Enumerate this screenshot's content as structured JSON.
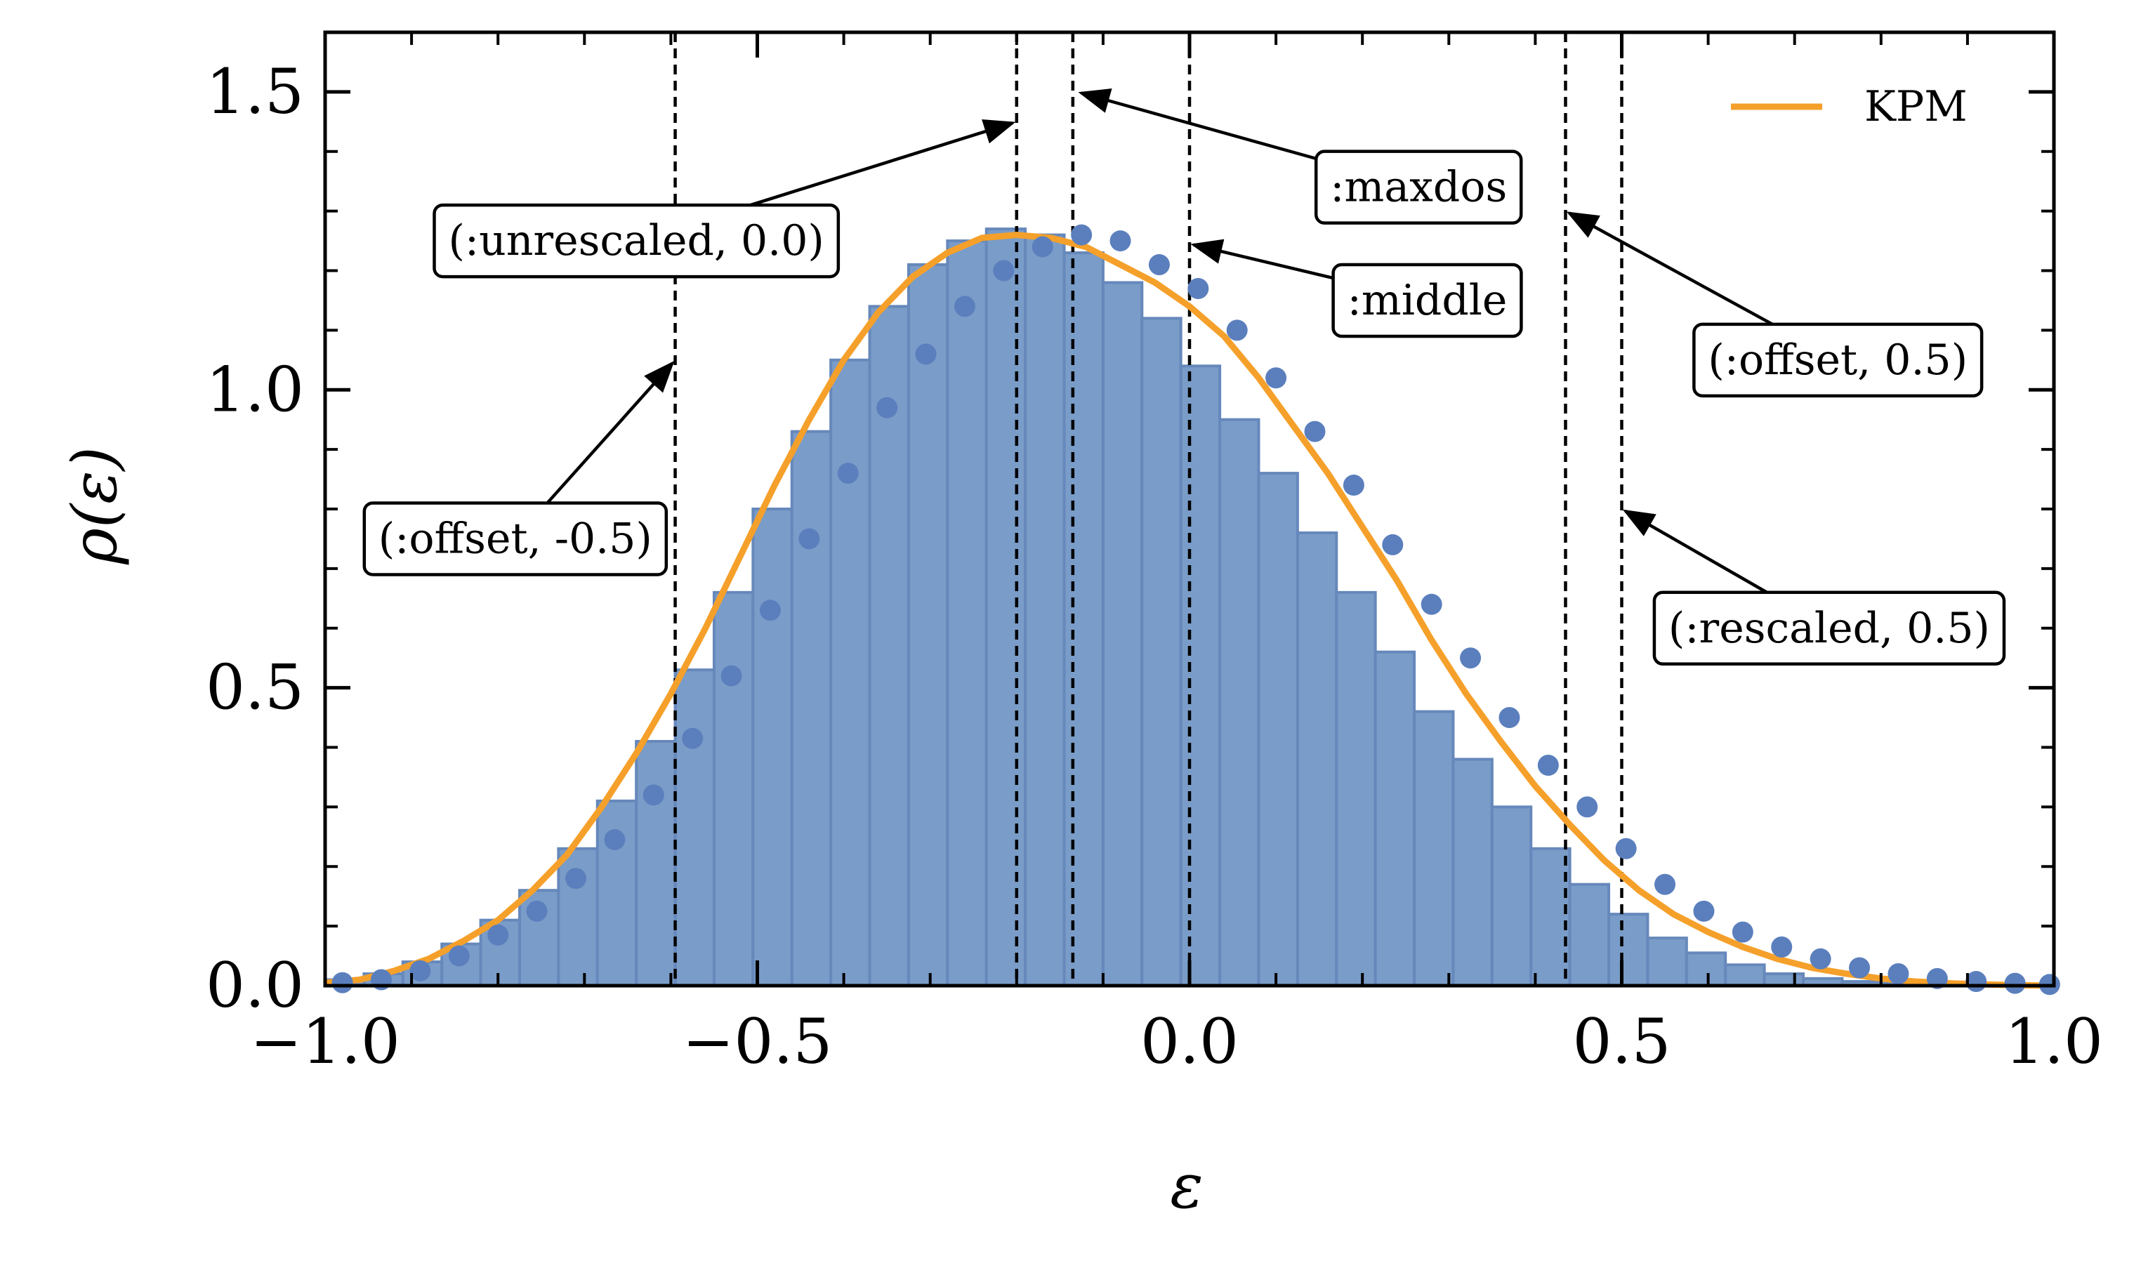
{
  "chart_data": {
    "type": "bar",
    "xlabel": "ε",
    "ylabel": "ρ(ε)",
    "xlim": [
      -1.0,
      1.0
    ],
    "ylim": [
      0.0,
      1.6
    ],
    "x_ticks": [
      -1.0,
      -0.5,
      0.0,
      0.5,
      1.0
    ],
    "x_tick_labels": [
      "−1.0",
      "−0.5",
      "0.0",
      "0.5",
      "1.0"
    ],
    "y_ticks": [
      0.0,
      0.5,
      1.0,
      1.5
    ],
    "y_tick_labels": [
      "0.0",
      "0.5",
      "1.0",
      "1.5"
    ],
    "grid": false,
    "legend": {
      "position": "top-right",
      "entries": [
        {
          "name": "KPM",
          "color": "#f5a02a",
          "style": "line"
        }
      ]
    },
    "colors": {
      "histogram": "#7a9cc8",
      "histogram_edge": "#6688bb",
      "points": "#5b7fbd",
      "kpm": "#f5a02a"
    },
    "histogram": {
      "bin_centers": [
        -0.9775,
        -0.9325,
        -0.8875,
        -0.8425,
        -0.7975,
        -0.7525,
        -0.7075,
        -0.6625,
        -0.6175,
        -0.5725,
        -0.5275,
        -0.4825,
        -0.4375,
        -0.3925,
        -0.3475,
        -0.3025,
        -0.2575,
        -0.2125,
        -0.1675,
        -0.1225,
        -0.0775,
        -0.0325,
        0.0125,
        0.0575,
        0.1025,
        0.1475,
        0.1925,
        0.2375,
        0.2825,
        0.3275,
        0.3725,
        0.4175,
        0.4625,
        0.5075,
        0.5525,
        0.5975,
        0.6425,
        0.6875,
        0.7325,
        0.7775,
        0.8225,
        0.8675,
        0.9125,
        0.9575
      ],
      "values": [
        0.01,
        0.02,
        0.04,
        0.07,
        0.11,
        0.16,
        0.23,
        0.31,
        0.41,
        0.53,
        0.66,
        0.8,
        0.93,
        1.05,
        1.14,
        1.21,
        1.25,
        1.27,
        1.26,
        1.23,
        1.18,
        1.12,
        1.04,
        0.95,
        0.86,
        0.76,
        0.66,
        0.56,
        0.46,
        0.38,
        0.3,
        0.23,
        0.17,
        0.12,
        0.08,
        0.055,
        0.035,
        0.02,
        0.012,
        0.007,
        0.004,
        0.002,
        0.001,
        0.0
      ]
    },
    "series": [
      {
        "name": "KPM",
        "type": "line",
        "x": [
          -1.0,
          -0.96,
          -0.92,
          -0.88,
          -0.84,
          -0.8,
          -0.76,
          -0.72,
          -0.68,
          -0.64,
          -0.6,
          -0.56,
          -0.52,
          -0.48,
          -0.44,
          -0.4,
          -0.36,
          -0.32,
          -0.28,
          -0.24,
          -0.2,
          -0.16,
          -0.12,
          -0.08,
          -0.04,
          0.0,
          0.04,
          0.08,
          0.12,
          0.16,
          0.2,
          0.24,
          0.28,
          0.32,
          0.36,
          0.4,
          0.44,
          0.48,
          0.52,
          0.56,
          0.6,
          0.64,
          0.68,
          0.72,
          0.76,
          0.8,
          0.84,
          0.88,
          0.92,
          0.96,
          1.0
        ],
        "y": [
          0.005,
          0.01,
          0.025,
          0.045,
          0.075,
          0.11,
          0.16,
          0.22,
          0.3,
          0.39,
          0.49,
          0.6,
          0.72,
          0.84,
          0.95,
          1.05,
          1.13,
          1.19,
          1.23,
          1.255,
          1.26,
          1.255,
          1.24,
          1.21,
          1.18,
          1.14,
          1.09,
          1.02,
          0.94,
          0.86,
          0.77,
          0.68,
          0.58,
          0.49,
          0.41,
          0.335,
          0.27,
          0.21,
          0.16,
          0.12,
          0.09,
          0.065,
          0.045,
          0.03,
          0.02,
          0.012,
          0.007,
          0.004,
          0.002,
          0.001,
          0.0
        ]
      }
    ],
    "points": {
      "x": [
        -0.98,
        -0.935,
        -0.89,
        -0.845,
        -0.8,
        -0.755,
        -0.71,
        -0.665,
        -0.62,
        -0.575,
        -0.53,
        -0.485,
        -0.44,
        -0.395,
        -0.35,
        -0.305,
        -0.26,
        -0.215,
        -0.17,
        -0.125,
        -0.08,
        -0.035,
        0.01,
        0.055,
        0.1,
        0.145,
        0.19,
        0.235,
        0.28,
        0.325,
        0.37,
        0.415,
        0.46,
        0.505,
        0.55,
        0.595,
        0.64,
        0.685,
        0.73,
        0.775,
        0.82,
        0.865,
        0.91,
        0.955,
        0.995
      ],
      "y": [
        0.005,
        0.01,
        0.025,
        0.05,
        0.085,
        0.125,
        0.18,
        0.245,
        0.32,
        0.415,
        0.52,
        0.63,
        0.75,
        0.86,
        0.97,
        1.06,
        1.14,
        1.2,
        1.24,
        1.26,
        1.25,
        1.21,
        1.17,
        1.1,
        1.02,
        0.93,
        0.84,
        0.74,
        0.64,
        0.55,
        0.45,
        0.37,
        0.3,
        0.23,
        0.17,
        0.125,
        0.09,
        0.065,
        0.045,
        0.03,
        0.02,
        0.012,
        0.007,
        0.004,
        0.002
      ]
    },
    "vlines": [
      {
        "label": "(:offset, -0.5)",
        "x": -0.595
      },
      {
        "label": "(:unrescaled, 0.0)",
        "x": -0.2
      },
      {
        "label": ":maxdos",
        "x": -0.135
      },
      {
        "label": ":middle",
        "x": 0.0
      },
      {
        "label": "(:offset, 0.5)",
        "x": 0.435
      },
      {
        "label": "(:rescaled, 0.5)",
        "x": 0.5
      }
    ],
    "annotations": [
      {
        "text": "(:unrescaled, 0.0)",
        "box_x": -0.64,
        "box_y": 1.25,
        "target_x": -0.2,
        "target_y": 1.45
      },
      {
        "text": ":maxdos",
        "box_x": 0.265,
        "box_y": 1.34,
        "target_x": -0.13,
        "target_y": 1.5
      },
      {
        "text": ":middle",
        "box_x": 0.275,
        "box_y": 1.15,
        "target_x": 0.0,
        "target_y": 1.245
      },
      {
        "text": "(:offset, 0.5)",
        "box_x": 0.75,
        "box_y": 1.05,
        "target_x": 0.435,
        "target_y": 1.3
      },
      {
        "text": "(:offset, -0.5)",
        "box_x": -0.78,
        "box_y": 0.75,
        "target_x": -0.595,
        "target_y": 1.05
      },
      {
        "text": "(:rescaled, 0.5)",
        "box_x": 0.74,
        "box_y": 0.6,
        "target_x": 0.5,
        "target_y": 0.8
      }
    ]
  }
}
